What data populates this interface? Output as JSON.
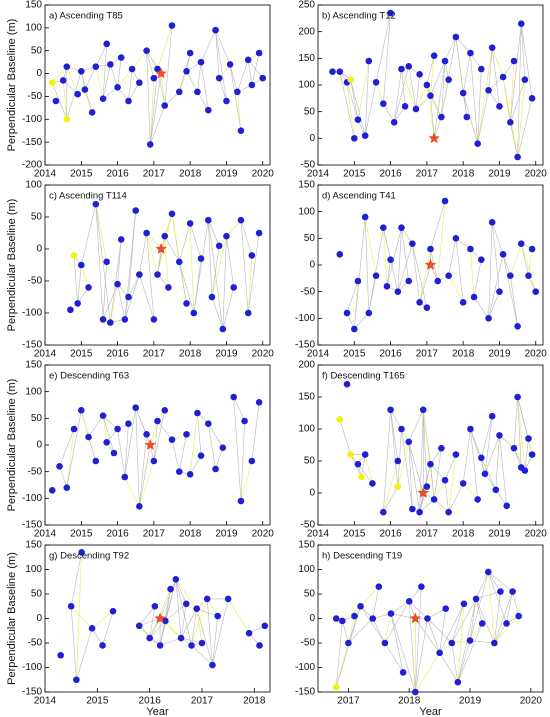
{
  "chart_data": [
    {
      "type": "scatter",
      "title": "a) Ascending T85",
      "ylabel": "Perpendicular Baseline (m)",
      "xlim": [
        2014,
        2020.2
      ],
      "ylim": [
        -200,
        150
      ],
      "xticks": [
        2014,
        2015,
        2016,
        2017,
        2018,
        2019,
        2020
      ],
      "yticks": [
        -200,
        -150,
        -100,
        -50,
        0,
        50,
        100,
        150
      ],
      "series": [
        {
          "color": "#1f1fd6",
          "x": [
            2014.3,
            2014.5,
            2014.6,
            2014.9,
            2015.0,
            2015.1,
            2015.3,
            2015.4,
            2015.6,
            2015.7,
            2015.8,
            2016.0,
            2016.1,
            2016.3,
            2016.4,
            2016.6,
            2016.8,
            2016.9,
            2017.0,
            2017.1,
            2017.3,
            2017.5,
            2017.7,
            2017.9,
            2018.0,
            2018.2,
            2018.3,
            2018.5,
            2018.7,
            2018.8,
            2019.0,
            2019.1,
            2019.3,
            2019.4,
            2019.6,
            2019.7,
            2019.9,
            2020.0
          ],
          "values": [
            -60,
            -15,
            15,
            -45,
            5,
            -35,
            -85,
            15,
            -55,
            65,
            20,
            -30,
            35,
            -60,
            10,
            -20,
            50,
            -155,
            -10,
            10,
            -70,
            105,
            -40,
            5,
            45,
            -40,
            25,
            -80,
            95,
            -10,
            -60,
            20,
            -40,
            -125,
            30,
            -25,
            45,
            -10
          ]
        },
        {
          "color": "#f2f20a",
          "x": [
            2014.2,
            2014.6
          ],
          "values": [
            -20,
            -100
          ]
        },
        {
          "color": "#e8502a",
          "marker": "star",
          "x": [
            2017.2
          ],
          "values": [
            0
          ]
        }
      ]
    },
    {
      "type": "scatter",
      "title": "b) Ascending T12",
      "xlim": [
        2014,
        2020.2
      ],
      "ylim": [
        -50,
        250
      ],
      "xticks": [
        2014,
        2015,
        2016,
        2017,
        2018,
        2019,
        2020
      ],
      "yticks": [
        -50,
        0,
        50,
        100,
        150,
        200,
        250
      ],
      "series": [
        {
          "color": "#1f1fd6",
          "x": [
            2014.4,
            2014.6,
            2014.8,
            2015.0,
            2015.1,
            2015.3,
            2015.4,
            2015.6,
            2015.8,
            2016.0,
            2016.1,
            2016.3,
            2016.4,
            2016.5,
            2016.7,
            2016.8,
            2017.0,
            2017.1,
            2017.2,
            2017.4,
            2017.5,
            2017.6,
            2017.8,
            2018.0,
            2018.1,
            2018.2,
            2018.4,
            2018.5,
            2018.7,
            2018.8,
            2019.0,
            2019.1,
            2019.3,
            2019.4,
            2019.5,
            2019.6,
            2019.7,
            2019.9
          ],
          "values": [
            125,
            125,
            105,
            0,
            35,
            5,
            145,
            105,
            65,
            235,
            30,
            130,
            60,
            135,
            55,
            120,
            100,
            80,
            155,
            40,
            145,
            110,
            190,
            85,
            40,
            160,
            -10,
            130,
            90,
            170,
            60,
            115,
            30,
            145,
            -35,
            215,
            110,
            75
          ]
        },
        {
          "color": "#f2f20a",
          "x": [
            2014.9
          ],
          "values": [
            110
          ]
        },
        {
          "color": "#e8502a",
          "marker": "star",
          "x": [
            2017.2
          ],
          "values": [
            0
          ]
        }
      ]
    },
    {
      "type": "scatter",
      "title": "c) Ascending T114",
      "ylabel": "Perpendicular Baseline (m)",
      "xlim": [
        2014,
        2020.2
      ],
      "ylim": [
        -150,
        100
      ],
      "xticks": [
        2014,
        2015,
        2016,
        2017,
        2018,
        2019,
        2020
      ],
      "yticks": [
        -150,
        -100,
        -50,
        0,
        50,
        100
      ],
      "series": [
        {
          "color": "#1f1fd6",
          "x": [
            2014.7,
            2014.9,
            2015.0,
            2015.2,
            2015.4,
            2015.6,
            2015.7,
            2015.8,
            2016.0,
            2016.1,
            2016.2,
            2016.3,
            2016.5,
            2016.6,
            2016.8,
            2017.0,
            2017.1,
            2017.3,
            2017.4,
            2017.5,
            2017.7,
            2017.9,
            2018.0,
            2018.1,
            2018.3,
            2018.5,
            2018.6,
            2018.8,
            2018.9,
            2019.0,
            2019.2,
            2019.4,
            2019.6,
            2019.7,
            2019.9
          ],
          "values": [
            -95,
            -85,
            -25,
            -60,
            70,
            -110,
            -20,
            -115,
            -55,
            15,
            -110,
            -75,
            60,
            -40,
            25,
            -110,
            -40,
            20,
            -60,
            55,
            -20,
            -85,
            40,
            -100,
            -15,
            45,
            -75,
            5,
            -125,
            20,
            -60,
            45,
            -100,
            -10,
            25
          ]
        },
        {
          "color": "#f2f20a",
          "x": [
            2014.8
          ],
          "values": [
            -10
          ]
        },
        {
          "color": "#e8502a",
          "marker": "star",
          "x": [
            2017.2
          ],
          "values": [
            0
          ]
        }
      ]
    },
    {
      "type": "scatter",
      "title": "d) Ascending T41",
      "xlim": [
        2014,
        2020.2
      ],
      "ylim": [
        -150,
        150
      ],
      "xticks": [
        2014,
        2015,
        2016,
        2017,
        2018,
        2019,
        2020
      ],
      "yticks": [
        -150,
        -100,
        -50,
        0,
        50,
        100,
        150
      ],
      "series": [
        {
          "color": "#1f1fd6",
          "x": [
            2014.6,
            2014.8,
            2015.0,
            2015.1,
            2015.3,
            2015.4,
            2015.6,
            2015.8,
            2015.9,
            2016.0,
            2016.2,
            2016.3,
            2016.5,
            2016.6,
            2016.8,
            2017.0,
            2017.1,
            2017.3,
            2017.5,
            2017.6,
            2017.8,
            2018.0,
            2018.2,
            2018.3,
            2018.5,
            2018.7,
            2018.8,
            2019.0,
            2019.1,
            2019.3,
            2019.5,
            2019.6,
            2019.8,
            2019.9,
            2020.0
          ],
          "values": [
            20,
            -90,
            -120,
            -30,
            90,
            -90,
            -20,
            70,
            -40,
            10,
            -50,
            70,
            -30,
            40,
            -70,
            -80,
            30,
            -30,
            120,
            -20,
            50,
            -70,
            30,
            -60,
            10,
            -100,
            80,
            -50,
            20,
            -20,
            -115,
            40,
            -20,
            30,
            -50
          ]
        },
        {
          "color": "#e8502a",
          "marker": "star",
          "x": [
            2017.1
          ],
          "values": [
            0
          ]
        }
      ]
    },
    {
      "type": "scatter",
      "title": "e) Descending T63",
      "ylabel": "Perpendicular Baseline (m)",
      "xlim": [
        2014,
        2020.2
      ],
      "ylim": [
        -150,
        150
      ],
      "xticks": [
        2014,
        2015,
        2016,
        2017,
        2018,
        2019,
        2020
      ],
      "yticks": [
        -150,
        -100,
        -50,
        0,
        50,
        100,
        150
      ],
      "series": [
        {
          "color": "#1f1fd6",
          "x": [
            2014.2,
            2014.4,
            2014.6,
            2014.8,
            2015.0,
            2015.2,
            2015.4,
            2015.6,
            2015.7,
            2015.9,
            2016.0,
            2016.2,
            2016.3,
            2016.5,
            2016.6,
            2016.8,
            2017.0,
            2017.1,
            2017.3,
            2017.5,
            2017.7,
            2017.9,
            2018.0,
            2018.2,
            2018.3,
            2018.5,
            2018.7,
            2018.9,
            2019.2,
            2019.4,
            2019.5,
            2019.7,
            2019.9
          ],
          "values": [
            -85,
            -40,
            -80,
            30,
            65,
            15,
            -30,
            55,
            5,
            -15,
            30,
            -60,
            40,
            70,
            -115,
            20,
            -30,
            45,
            65,
            10,
            -50,
            20,
            -55,
            60,
            -20,
            40,
            -45,
            -5,
            90,
            -105,
            45,
            -30,
            80
          ]
        },
        {
          "color": "#e8502a",
          "marker": "star",
          "x": [
            2016.9
          ],
          "values": [
            0
          ]
        }
      ]
    },
    {
      "type": "scatter",
      "title": "f) Descending T165",
      "xlim": [
        2014,
        2020.2
      ],
      "ylim": [
        -50,
        200
      ],
      "xticks": [
        2014,
        2015,
        2016,
        2017,
        2018,
        2019,
        2020
      ],
      "yticks": [
        -50,
        0,
        50,
        100,
        150,
        200
      ],
      "series": [
        {
          "color": "#1f1fd6",
          "x": [
            2014.8,
            2015.1,
            2015.3,
            2015.5,
            2015.8,
            2016.0,
            2016.2,
            2016.3,
            2016.5,
            2016.6,
            2016.8,
            2016.9,
            2017.0,
            2017.1,
            2017.2,
            2017.4,
            2017.5,
            2017.6,
            2017.8,
            2018.0,
            2018.2,
            2018.4,
            2018.5,
            2018.6,
            2018.8,
            2018.9,
            2019.0,
            2019.2,
            2019.4,
            2019.5,
            2019.6,
            2019.7,
            2019.8,
            2019.9
          ],
          "values": [
            170,
            45,
            60,
            15,
            -30,
            130,
            50,
            100,
            80,
            -25,
            -30,
            130,
            10,
            45,
            -10,
            70,
            20,
            -30,
            60,
            15,
            100,
            -10,
            55,
            30,
            120,
            5,
            90,
            -20,
            70,
            150,
            40,
            35,
            85,
            60
          ]
        },
        {
          "color": "#f2f20a",
          "x": [
            2014.6,
            2014.9,
            2015.2,
            2016.2
          ],
          "values": [
            115,
            60,
            25,
            10
          ]
        },
        {
          "color": "#e8502a",
          "marker": "star",
          "x": [
            2016.9
          ],
          "values": [
            0
          ]
        }
      ]
    },
    {
      "type": "scatter",
      "title": "g) Descending T92",
      "ylabel": "Perpendicular Baseline (m)",
      "xlabel": "Year",
      "xlim": [
        2014,
        2018.3
      ],
      "ylim": [
        -150,
        150
      ],
      "xticks": [
        2014,
        2015,
        2016,
        2017,
        2018
      ],
      "yticks": [
        -150,
        -100,
        -50,
        0,
        50,
        100,
        150
      ],
      "series": [
        {
          "color": "#1f1fd6",
          "x": [
            2014.3,
            2014.5,
            2014.6,
            2014.7,
            2014.9,
            2015.1,
            2015.3,
            2015.8,
            2016.0,
            2016.1,
            2016.2,
            2016.3,
            2016.4,
            2016.5,
            2016.6,
            2016.7,
            2016.8,
            2016.9,
            2017.0,
            2017.1,
            2017.2,
            2017.3,
            2017.5,
            2017.9,
            2018.1,
            2018.2
          ],
          "values": [
            -75,
            25,
            -125,
            135,
            -20,
            -55,
            15,
            -15,
            -40,
            25,
            -55,
            -5,
            60,
            80,
            -40,
            30,
            -55,
            20,
            -50,
            40,
            -95,
            5,
            40,
            -30,
            -55,
            -15
          ]
        },
        {
          "color": "#e8502a",
          "marker": "star",
          "x": [
            2016.2
          ],
          "values": [
            0
          ]
        }
      ]
    },
    {
      "type": "scatter",
      "title": "h) Descending T19",
      "xlabel": "Year",
      "xlim": [
        2016.5,
        2020.2
      ],
      "ylim": [
        -150,
        150
      ],
      "xticks": [
        2017,
        2018,
        2019,
        2020
      ],
      "yticks": [
        -150,
        -100,
        -50,
        0,
        50,
        100,
        150
      ],
      "series": [
        {
          "color": "#1f1fd6",
          "x": [
            2016.8,
            2016.9,
            2017.0,
            2017.1,
            2017.2,
            2017.4,
            2017.5,
            2017.6,
            2017.7,
            2017.9,
            2018.0,
            2018.1,
            2018.2,
            2018.3,
            2018.5,
            2018.6,
            2018.7,
            2018.8,
            2018.9,
            2019.0,
            2019.1,
            2019.2,
            2019.3,
            2019.4,
            2019.5,
            2019.6,
            2019.7,
            2019.8
          ],
          "values": [
            0,
            -5,
            -50,
            5,
            25,
            0,
            65,
            -50,
            10,
            -110,
            35,
            -150,
            65,
            0,
            -70,
            20,
            -50,
            -130,
            30,
            -45,
            40,
            -10,
            95,
            -50,
            55,
            -10,
            55,
            5
          ]
        },
        {
          "color": "#f2f20a",
          "x": [
            2016.8
          ],
          "values": [
            -140
          ]
        },
        {
          "color": "#e8502a",
          "marker": "star",
          "x": [
            2018.1
          ],
          "values": [
            0
          ]
        }
      ]
    }
  ]
}
